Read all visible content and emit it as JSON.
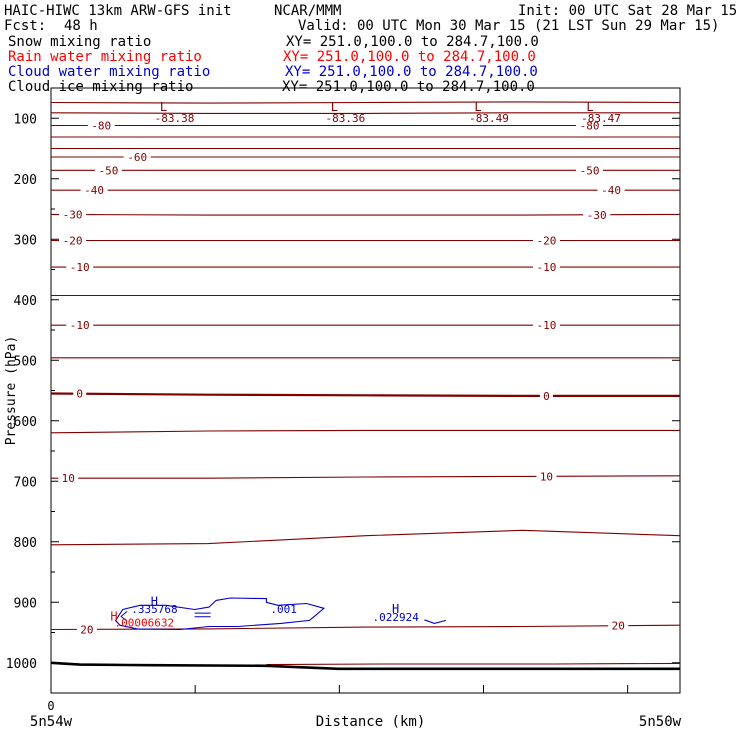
{
  "header": {
    "title_left": "HAIC-HIWC 13km ARW-GFS init",
    "center": "NCAR/MMM",
    "init": "Init: 00 UTC Sat 28 Mar 15",
    "fcst_label": "Fcst:",
    "fcst_value": "48 h",
    "valid": "Valid: 00 UTC Mon 30 Mar 15 (21 LST Sun 29 Mar 15)"
  },
  "fields": [
    {
      "name": "Snow mixing ratio",
      "xy": "XY= 251.0,100.0 to 284.7,100.0",
      "color": "#000000"
    },
    {
      "name": "Rain water mixing ratio",
      "xy": "XY= 251.0,100.0 to 284.7,100.0",
      "color": "#ff0000"
    },
    {
      "name": "Cloud water mixing ratio",
      "xy": "XY= 251.0,100.0 to 284.7,100.0",
      "color": "#0000cc"
    },
    {
      "name": "Cloud ice mixing ratio",
      "xy": "XY= 251.0,100.0 to 284.7,100.0",
      "color": "#000000"
    }
  ],
  "chart_data": {
    "type": "cross-section contour",
    "ylabel": "Pressure (hPa)",
    "xlabel": "Distance (km)",
    "y_ticks": [
      100,
      200,
      300,
      400,
      500,
      600,
      700,
      800,
      900,
      1000
    ],
    "y_range": [
      50,
      1050
    ],
    "x_range": [
      0,
      4.38
    ],
    "x_tick_labels": [
      "0"
    ],
    "x_end_labels": {
      "left": "5n54w",
      "right": "5n50w"
    },
    "temperature_color": "#800000",
    "terrain_color": "#000000",
    "temperature_contours": [
      {
        "p": [
          74,
          75,
          74,
          73,
          74
        ],
        "label": null,
        "thick": false
      },
      {
        "p": [
          91,
          92,
          92,
          91,
          91
        ],
        "label": null,
        "thick": false
      },
      {
        "p": [
          112,
          112,
          112,
          112,
          112
        ],
        "label": "-80",
        "label_x": [
          0.35,
          3.75
        ],
        "thick": false
      },
      {
        "p": [
          131,
          131,
          131,
          131,
          131
        ],
        "label": null,
        "thick": false
      },
      {
        "p": [
          150,
          150,
          150,
          150,
          150
        ],
        "label": null,
        "thick": false
      },
      {
        "p": [
          164,
          164,
          164,
          164,
          164
        ],
        "label": "-60",
        "label_x": [
          0.6
        ],
        "thick": false
      },
      {
        "p": [
          186,
          186,
          186,
          186,
          186
        ],
        "label": "-50",
        "label_x": [
          0.4,
          3.75
        ],
        "thick": false
      },
      {
        "p": [
          219,
          219,
          219,
          219,
          219
        ],
        "label": "-40",
        "label_x": [
          0.3,
          3.9
        ],
        "thick": false
      },
      {
        "p": [
          259,
          260,
          260,
          260,
          259
        ],
        "label": "-30",
        "label_x": [
          0.15,
          3.8
        ],
        "thick": false
      },
      {
        "p": [
          302,
          302,
          302,
          302,
          302
        ],
        "label": "-20",
        "label_x": [
          0.15,
          3.45
        ],
        "thick": false
      },
      {
        "p": [
          346,
          346,
          346,
          346,
          346
        ],
        "label": "-10",
        "label_x": [
          0.2,
          3.45
        ],
        "thick": false
      },
      {
        "p": [
          393,
          393,
          393,
          393,
          393
        ],
        "label": null,
        "thick": false
      },
      {
        "p": [
          442,
          442,
          442,
          442,
          442
        ],
        "label": "-10",
        "label_x": [
          0.2,
          3.45
        ],
        "thick": false
      },
      {
        "p": [
          496,
          496,
          496,
          496,
          496
        ],
        "label": null,
        "thick": false
      },
      {
        "p": [
          555,
          557,
          558,
          559,
          559
        ],
        "label": "0",
        "label_x": [
          0.2,
          3.45
        ],
        "thick": true
      },
      {
        "p": [
          620,
          617,
          616,
          616,
          616
        ],
        "label": null,
        "thick": false
      },
      {
        "p": [
          695,
          695,
          693,
          692,
          691
        ],
        "label": "10",
        "label_x": [
          0.12,
          3.45
        ],
        "thick": false
      },
      {
        "p": [
          805,
          803,
          790,
          781,
          790
        ],
        "label": null,
        "thick": false
      },
      {
        "p": [
          945,
          944,
          941,
          940,
          938
        ],
        "label": "20",
        "label_x": [
          0.25,
          3.95
        ],
        "thick": false
      }
    ],
    "temperature_minima": [
      {
        "letter": "L",
        "value": "-83.38",
        "x": 0.86,
        "p": 81
      },
      {
        "letter": "L",
        "value": "-83.36",
        "x": 2.05,
        "p": 81
      },
      {
        "letter": "L",
        "value": "-83.49",
        "x": 3.05,
        "p": 81
      },
      {
        "letter": "L",
        "value": "-83.47",
        "x": 3.83,
        "p": 81
      }
    ],
    "cloud_water": [
      {
        "label": ".001",
        "maxima": [
          {
            "letter": "H",
            "value": ".335768",
            "x": 0.72,
            "p": 918
          },
          {
            "letter": "H",
            "value": ".022924",
            "x": 2.4,
            "p": 931
          }
        ]
      }
    ],
    "rain_water": {
      "letter": "H",
      "value": ".00006632",
      "x": 0.65,
      "p": 940
    },
    "terrain_surface": {
      "x": [
        0.0,
        0.2,
        0.7,
        1.5,
        2.0,
        2.4,
        3.5,
        4.38
      ],
      "p": [
        1000,
        1003,
        1004,
        1005,
        1010,
        1010,
        1010,
        1010
      ]
    }
  }
}
